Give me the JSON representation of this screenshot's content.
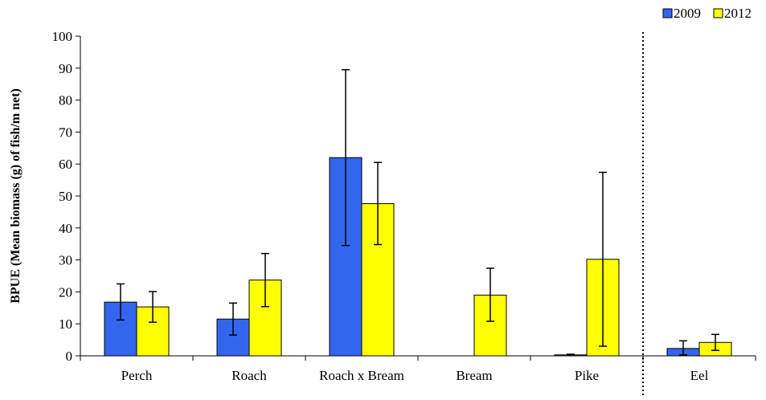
{
  "chart_data": {
    "type": "bar",
    "title": "",
    "xlabel": "",
    "ylabel": "BPUE (Mean biomass (g) of  fish/m net)",
    "ylim": [
      0,
      100
    ],
    "yticks": [
      0,
      10,
      20,
      30,
      40,
      50,
      60,
      70,
      80,
      90,
      100
    ],
    "categories": [
      "Perch",
      "Roach",
      "Roach x Bream",
      "Bream",
      "Pike",
      "Eel"
    ],
    "separator_before_category": "Eel",
    "legend_position": "top-right",
    "grid": false,
    "series": [
      {
        "name": "2009",
        "color": "#3366ee",
        "values": [
          16.8,
          11.5,
          62.0,
          0,
          0.3,
          2.3
        ],
        "error_low": [
          11.2,
          6.5,
          34.5,
          0,
          0.1,
          0.3
        ],
        "error_high": [
          22.5,
          16.5,
          89.5,
          0,
          0.5,
          4.7
        ]
      },
      {
        "name": "2012",
        "color": "#ffff00",
        "values": [
          15.3,
          23.7,
          47.6,
          19.0,
          30.2,
          4.2
        ],
        "error_low": [
          10.5,
          15.4,
          34.8,
          10.8,
          3.0,
          1.7
        ],
        "error_high": [
          20.1,
          32.0,
          60.5,
          27.4,
          57.4,
          6.7
        ]
      }
    ]
  }
}
